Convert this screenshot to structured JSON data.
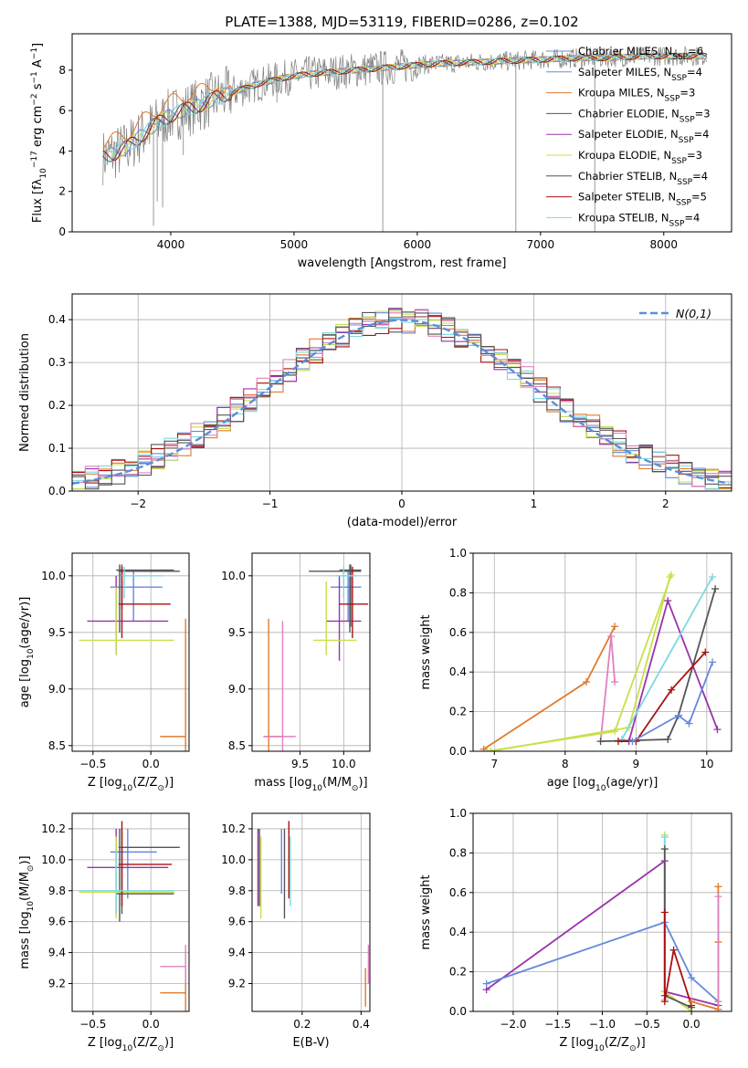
{
  "figure_title": "PLATE=1388, MJD=53119, FIBERID=0286, z=0.102",
  "colors": {
    "Chabrier MILES": "#6688dd",
    "Salpeter MILES": "#6688dd",
    "Kroupa MILES": "#e07b30",
    "Chabrier ELODIE": "#555555",
    "Salpeter ELODIE": "#9933aa",
    "Kroupa ELODIE": "#c8e04a",
    "Chabrier STELIB": "#555555",
    "Salpeter STELIB": "#aa1111",
    "Kroupa STELIB": "#7fd8e0",
    "pink": "#e080c0",
    "data": "#808080",
    "gaussian": "#5b8fd9"
  },
  "chart_data": [
    {
      "id": "spectrum",
      "type": "line",
      "title": "PLATE=1388, MJD=53119, FIBERID=0286, z=0.102",
      "xlabel": "wavelength [Angstrom, rest frame]",
      "ylabel_parts": [
        "Flux [f",
        "λ",
        "10",
        "−17",
        " erg cm",
        "−2",
        " s",
        "−1",
        " A",
        "−1",
        "]"
      ],
      "xlim": [
        3200,
        8550
      ],
      "ylim": [
        0,
        9.8
      ],
      "xticks": [
        4000,
        5000,
        6000,
        7000,
        8000
      ],
      "yticks": [
        0,
        2,
        4,
        6,
        8
      ],
      "legend_position": "top-right",
      "legend": [
        {
          "label": "Chabrier MILES, N",
          "sub": "SSP",
          "tail": "=6"
        },
        {
          "label": "Salpeter MILES, N",
          "sub": "SSP",
          "tail": "=4"
        },
        {
          "label": "Kroupa MILES, N",
          "sub": "SSP",
          "tail": "=3"
        },
        {
          "label": "Chabrier ELODIE, N",
          "sub": "SSP",
          "tail": "=3"
        },
        {
          "label": "Salpeter ELODIE, N",
          "sub": "SSP",
          "tail": "=4"
        },
        {
          "label": "Kroupa ELODIE, N",
          "sub": "SSP",
          "tail": "=3"
        },
        {
          "label": "Chabrier STELIB, N",
          "sub": "SSP",
          "tail": "=4"
        },
        {
          "label": "Salpeter STELIB, N",
          "sub": "SSP",
          "tail": "=5"
        },
        {
          "label": "Kroupa STELIB, N",
          "sub": "SSP",
          "tail": "=4"
        }
      ],
      "continuum": {
        "x": [
          3450,
          3550,
          3650,
          3750,
          3850,
          3950,
          4050,
          4150,
          4250,
          4350,
          4500,
          4700,
          4900,
          5100,
          5300,
          5500,
          5700,
          5900,
          6100,
          6300,
          6500,
          6700,
          6900,
          7100,
          7300,
          7500,
          7700,
          7900,
          8100,
          8300
        ],
        "y": [
          3.7,
          3.9,
          4.2,
          4.7,
          5.2,
          5.6,
          5.9,
          6.1,
          6.3,
          6.6,
          6.9,
          7.3,
          7.6,
          7.8,
          7.9,
          8.0,
          8.1,
          8.2,
          8.3,
          8.35,
          8.4,
          8.45,
          8.5,
          8.55,
          8.6,
          8.6,
          8.65,
          8.7,
          8.7,
          8.7
        ]
      },
      "features": [
        {
          "x": 3860,
          "y": 0.3
        },
        {
          "x": 3890,
          "y": 1.5
        },
        {
          "x": 3934,
          "y": 1.2
        },
        {
          "x": 4102,
          "y": 3.8
        },
        {
          "x": 4861,
          "y": 6.4
        },
        {
          "x": 5720,
          "y": 0.0
        },
        {
          "x": 6800,
          "y": 0.0
        },
        {
          "x": 7440,
          "y": 0.0
        }
      ]
    },
    {
      "id": "residuals",
      "type": "step",
      "xlabel": "(data-model)/error",
      "ylabel": "Normed distribution",
      "xlim": [
        -2.5,
        2.5
      ],
      "ylim": [
        0,
        0.46
      ],
      "xticks": [
        -2,
        -1,
        0,
        1,
        2
      ],
      "yticks": [
        0.0,
        0.1,
        0.2,
        0.3,
        0.4
      ],
      "legend": "N(0,1)",
      "legend_position": "top-right",
      "bin_width": 0.1
    },
    {
      "id": "age_vs_Z",
      "type": "errorbar",
      "xlabel_parts": [
        "Z [log",
        "10",
        "(Z/Z",
        "⊙",
        ")]"
      ],
      "ylabel_parts": [
        "age  [log",
        "10",
        "(age/yr)]"
      ],
      "xlim": [
        -0.68,
        0.33
      ],
      "ylim": [
        8.45,
        10.2
      ],
      "xticks": [
        -0.5,
        0.0
      ],
      "yticks": [
        8.5,
        9.0,
        9.5,
        10.0
      ],
      "points": [
        {
          "c": "Chabrier MILES",
          "x": -0.15,
          "xe": [
            -0.35,
            0.1
          ],
          "y": 9.9,
          "ye": [
            9.6,
            10.05
          ]
        },
        {
          "c": "Kroupa MILES",
          "x": 0.3,
          "xe": [
            0.08,
            0.3
          ],
          "y": 8.58,
          "ye": [
            8.45,
            9.62
          ]
        },
        {
          "c": "Chabrier ELODIE",
          "x": -0.27,
          "xe": [
            -0.28,
            0.25
          ],
          "y": 10.04,
          "ye": [
            9.5,
            10.1
          ]
        },
        {
          "c": "Salpeter ELODIE",
          "x": -0.3,
          "xe": [
            -0.55,
            0.15
          ],
          "y": 9.6,
          "ye": [
            9.3,
            10.0
          ]
        },
        {
          "c": "Kroupa ELODIE",
          "x": -0.3,
          "xe": [
            -0.62,
            0.2
          ],
          "y": 9.43,
          "ye": [
            9.3,
            9.9
          ]
        },
        {
          "c": "Chabrier STELIB",
          "x": -0.25,
          "xe": [
            -0.3,
            0.2
          ],
          "y": 10.05,
          "ye": [
            9.7,
            10.1
          ]
        },
        {
          "c": "Salpeter STELIB",
          "x": -0.25,
          "xe": [
            -0.28,
            0.17
          ],
          "y": 9.75,
          "ye": [
            9.45,
            10.08
          ]
        },
        {
          "c": "Kroupa STELIB",
          "x": -0.23,
          "xe": [
            -0.25,
            0.1
          ],
          "y": 10.0,
          "ye": [
            9.8,
            10.08
          ]
        }
      ]
    },
    {
      "id": "age_vs_mass",
      "type": "errorbar",
      "xlabel_parts": [
        "mass [log",
        "10",
        "(M/M",
        "⊙",
        ")]"
      ],
      "xlim": [
        8.95,
        10.3
      ],
      "ylim": [
        8.45,
        10.2
      ],
      "xticks": [
        9.5,
        10.0
      ],
      "yticks": [
        8.5,
        9.0,
        9.5,
        10.0
      ],
      "points": [
        {
          "c": "Chabrier MILES",
          "x": 10.05,
          "xe": [
            9.85,
            10.2
          ],
          "y": 9.9,
          "ye": [
            9.6,
            10.05
          ]
        },
        {
          "c": "Kroupa MILES",
          "x": 9.14,
          "xe": [
            9.08,
            9.3
          ],
          "y": 8.58,
          "ye": [
            8.45,
            9.62
          ]
        },
        {
          "c": "pink",
          "x": 9.3,
          "xe": [
            9.08,
            9.45
          ],
          "y": 8.58,
          "ye": [
            8.45,
            9.6
          ]
        },
        {
          "c": "Chabrier ELODIE",
          "x": 10.07,
          "xe": [
            9.6,
            10.2
          ],
          "y": 10.04,
          "ye": [
            9.5,
            10.1
          ]
        },
        {
          "c": "Salpeter ELODIE",
          "x": 9.95,
          "xe": [
            9.8,
            10.2
          ],
          "y": 9.6,
          "ye": [
            9.25,
            10.0
          ]
        },
        {
          "c": "Kroupa ELODIE",
          "x": 9.8,
          "xe": [
            9.65,
            10.15
          ],
          "y": 9.43,
          "ye": [
            9.3,
            9.95
          ]
        },
        {
          "c": "Chabrier STELIB",
          "x": 10.08,
          "xe": [
            9.95,
            10.2
          ],
          "y": 10.05,
          "ye": [
            9.55,
            10.1
          ]
        },
        {
          "c": "Salpeter STELIB",
          "x": 10.1,
          "xe": [
            9.95,
            10.28
          ],
          "y": 9.75,
          "ye": [
            9.45,
            10.08
          ]
        },
        {
          "c": "Kroupa STELIB",
          "x": 10.0,
          "xe": [
            9.9,
            10.15
          ],
          "y": 10.0,
          "ye": [
            9.8,
            10.08
          ]
        }
      ]
    },
    {
      "id": "weight_vs_age",
      "type": "line",
      "xlabel_parts": [
        "age  [log",
        "10",
        "(age/yr)]"
      ],
      "ylabel": "mass weight",
      "xlim": [
        6.7,
        10.35
      ],
      "ylim": [
        0,
        1.0
      ],
      "xticks": [
        7,
        8,
        9,
        10
      ],
      "yticks": [
        0.0,
        0.2,
        0.4,
        0.6,
        0.8,
        1.0
      ],
      "series": [
        {
          "c": "Kroupa MILES",
          "x": [
            6.85,
            8.3,
            8.7
          ],
          "y": [
            0.01,
            0.35,
            0.63
          ]
        },
        {
          "c": "pink",
          "x": [
            8.5,
            8.65,
            8.7
          ],
          "y": [
            0.05,
            0.58,
            0.35
          ]
        },
        {
          "c": "Kroupa ELODIE",
          "x": [
            6.9,
            8.7,
            9.5
          ],
          "y": [
            0.0,
            0.1,
            0.89
          ]
        },
        {
          "c": "Kroupa ELODIE",
          "x": [
            6.95,
            8.9,
            9.48
          ],
          "y": [
            0.0,
            0.12,
            0.88
          ]
        },
        {
          "c": "Salpeter ELODIE",
          "x": [
            8.9,
            9.45,
            10.15
          ],
          "y": [
            0.05,
            0.76,
            0.11
          ]
        },
        {
          "c": "Kroupa STELIB",
          "x": [
            8.8,
            10.08
          ],
          "y": [
            0.06,
            0.88
          ]
        },
        {
          "c": "Chabrier STELIB",
          "x": [
            8.5,
            9.45,
            9.6,
            10.12
          ],
          "y": [
            0.05,
            0.06,
            0.18,
            0.82
          ]
        },
        {
          "c": "Salpeter STELIB",
          "x": [
            8.75,
            9.0,
            9.5,
            9.98
          ],
          "y": [
            0.05,
            0.05,
            0.31,
            0.5
          ]
        },
        {
          "c": "Chabrier MILES",
          "x": [
            8.95,
            9.6,
            9.75,
            10.08
          ],
          "y": [
            0.05,
            0.18,
            0.14,
            0.45
          ]
        }
      ]
    },
    {
      "id": "mass_vs_Z",
      "type": "errorbar",
      "xlabel_parts": [
        "Z [log",
        "10",
        "(Z/Z",
        "⊙",
        ")]"
      ],
      "ylabel_parts": [
        "mass [log",
        "10",
        "(M/M",
        "⊙",
        ")]"
      ],
      "xlim": [
        -0.68,
        0.33
      ],
      "ylim": [
        9.02,
        10.3
      ],
      "xticks": [
        -0.5,
        0.0
      ],
      "yticks": [
        9.2,
        9.4,
        9.6,
        9.8,
        10.0,
        10.2
      ],
      "points": [
        {
          "c": "Chabrier MILES",
          "x": -0.2,
          "xe": [
            -0.35,
            0.05
          ],
          "y": 10.05,
          "ye": [
            9.75,
            10.2
          ]
        },
        {
          "c": "Kroupa MILES",
          "x": 0.3,
          "xe": [
            0.08,
            0.3
          ],
          "y": 9.14,
          "ye": [
            9.02,
            9.3
          ]
        },
        {
          "c": "pink",
          "x": 0.3,
          "xe": [
            0.08,
            0.3
          ],
          "y": 9.31,
          "ye": [
            9.2,
            9.45
          ]
        },
        {
          "c": "Chabrier ELODIE",
          "x": -0.27,
          "xe": [
            -0.28,
            0.25
          ],
          "y": 10.08,
          "ye": [
            9.6,
            10.2
          ]
        },
        {
          "c": "Salpeter ELODIE",
          "x": -0.3,
          "xe": [
            -0.55,
            0.15
          ],
          "y": 9.95,
          "ye": [
            9.65,
            10.2
          ]
        },
        {
          "c": "Kroupa ELODIE",
          "x": -0.3,
          "xe": [
            -0.62,
            0.2
          ],
          "y": 9.79,
          "ye": [
            9.62,
            10.15
          ]
        },
        {
          "c": "Chabrier STELIB",
          "x": -0.25,
          "xe": [
            -0.3,
            0.2
          ],
          "y": 9.78,
          "ye": [
            9.65,
            10.2
          ]
        },
        {
          "c": "Salpeter STELIB",
          "x": -0.25,
          "xe": [
            -0.28,
            0.18
          ],
          "y": 9.97,
          "ye": [
            9.7,
            10.25
          ]
        },
        {
          "c": "Kroupa STELIB",
          "x": -0.3,
          "xe": [
            -0.62,
            0.2
          ],
          "y": 9.8,
          "ye": [
            9.65,
            10.05
          ]
        }
      ]
    },
    {
      "id": "mass_vs_ebv",
      "type": "errorbar",
      "xlabel": "E(B-V)",
      "xlim": [
        0.03,
        0.43
      ],
      "ylim": [
        9.02,
        10.3
      ],
      "xticks": [
        0.2,
        0.4
      ],
      "yticks": [
        9.2,
        9.4,
        9.6,
        9.8,
        10.0,
        10.2
      ],
      "points": [
        {
          "c": "Kroupa MILES",
          "x": 0.415,
          "y": 9.14,
          "ye": [
            9.05,
            9.3
          ]
        },
        {
          "c": "pink",
          "x": 0.425,
          "y": 9.31,
          "ye": [
            9.2,
            9.45
          ]
        },
        {
          "c": "Chabrier MILES",
          "x": 0.13,
          "y": 9.95,
          "ye": [
            9.78,
            10.2
          ]
        },
        {
          "c": "Salpeter ELODIE",
          "x": 0.05,
          "y": 10.0,
          "ye": [
            9.7,
            10.2
          ]
        },
        {
          "c": "Kroupa ELODIE",
          "x": 0.06,
          "y": 9.8,
          "ye": [
            9.62,
            10.15
          ]
        },
        {
          "c": "Chabrier STELIB",
          "x": 0.14,
          "y": 9.8,
          "ye": [
            9.62,
            10.2
          ]
        },
        {
          "c": "Salpeter STELIB",
          "x": 0.155,
          "y": 10.0,
          "ye": [
            9.75,
            10.25
          ]
        },
        {
          "c": "Kroupa STELIB",
          "x": 0.16,
          "y": 9.9,
          "ye": [
            9.7,
            10.15
          ]
        },
        {
          "c": "Chabrier ELODIE",
          "x": 0.055,
          "y": 10.05,
          "ye": [
            9.7,
            10.2
          ]
        }
      ]
    },
    {
      "id": "weight_vs_Z",
      "type": "line",
      "xlabel_parts": [
        "Z [log",
        "10",
        "(Z/Z",
        "⊙",
        ")]"
      ],
      "ylabel": "mass weight",
      "xlim": [
        -2.45,
        0.45
      ],
      "ylim": [
        0,
        1.0
      ],
      "xticks": [
        -2.0,
        -1.5,
        -1.0,
        -0.5,
        0.0
      ],
      "yticks": [
        0.0,
        0.2,
        0.4,
        0.6,
        0.8,
        1.0
      ],
      "series": [
        {
          "c": "Salpeter ELODIE",
          "x": [
            -2.3,
            -0.3,
            -0.3,
            0.3
          ],
          "y": [
            0.11,
            0.76,
            0.1,
            0.03
          ]
        },
        {
          "c": "Chabrier MILES",
          "x": [
            -2.3,
            -0.3,
            0.0,
            0.3
          ],
          "y": [
            0.14,
            0.45,
            0.17,
            0.05
          ]
        },
        {
          "c": "Kroupa ELODIE",
          "x": [
            -0.3,
            -0.3,
            0.0
          ],
          "y": [
            0.89,
            0.1,
            0.0
          ]
        },
        {
          "c": "Kroupa STELIB",
          "x": [
            -0.3,
            -0.3
          ],
          "y": [
            0.88,
            0.06
          ]
        },
        {
          "c": "Chabrier STELIB",
          "x": [
            -0.3,
            -0.3,
            0.0
          ],
          "y": [
            0.82,
            0.08,
            0.02
          ]
        },
        {
          "c": "Salpeter STELIB",
          "x": [
            -0.3,
            -0.3,
            -0.2,
            0.0
          ],
          "y": [
            0.5,
            0.05,
            0.31,
            0.03
          ]
        },
        {
          "c": "Kroupa MILES",
          "x": [
            0.3,
            0.3,
            0.3,
            0.0
          ],
          "y": [
            0.63,
            0.35,
            0.01,
            0.05
          ]
        },
        {
          "c": "pink",
          "x": [
            0.3,
            0.3
          ],
          "y": [
            0.58,
            0.05
          ]
        }
      ]
    }
  ]
}
